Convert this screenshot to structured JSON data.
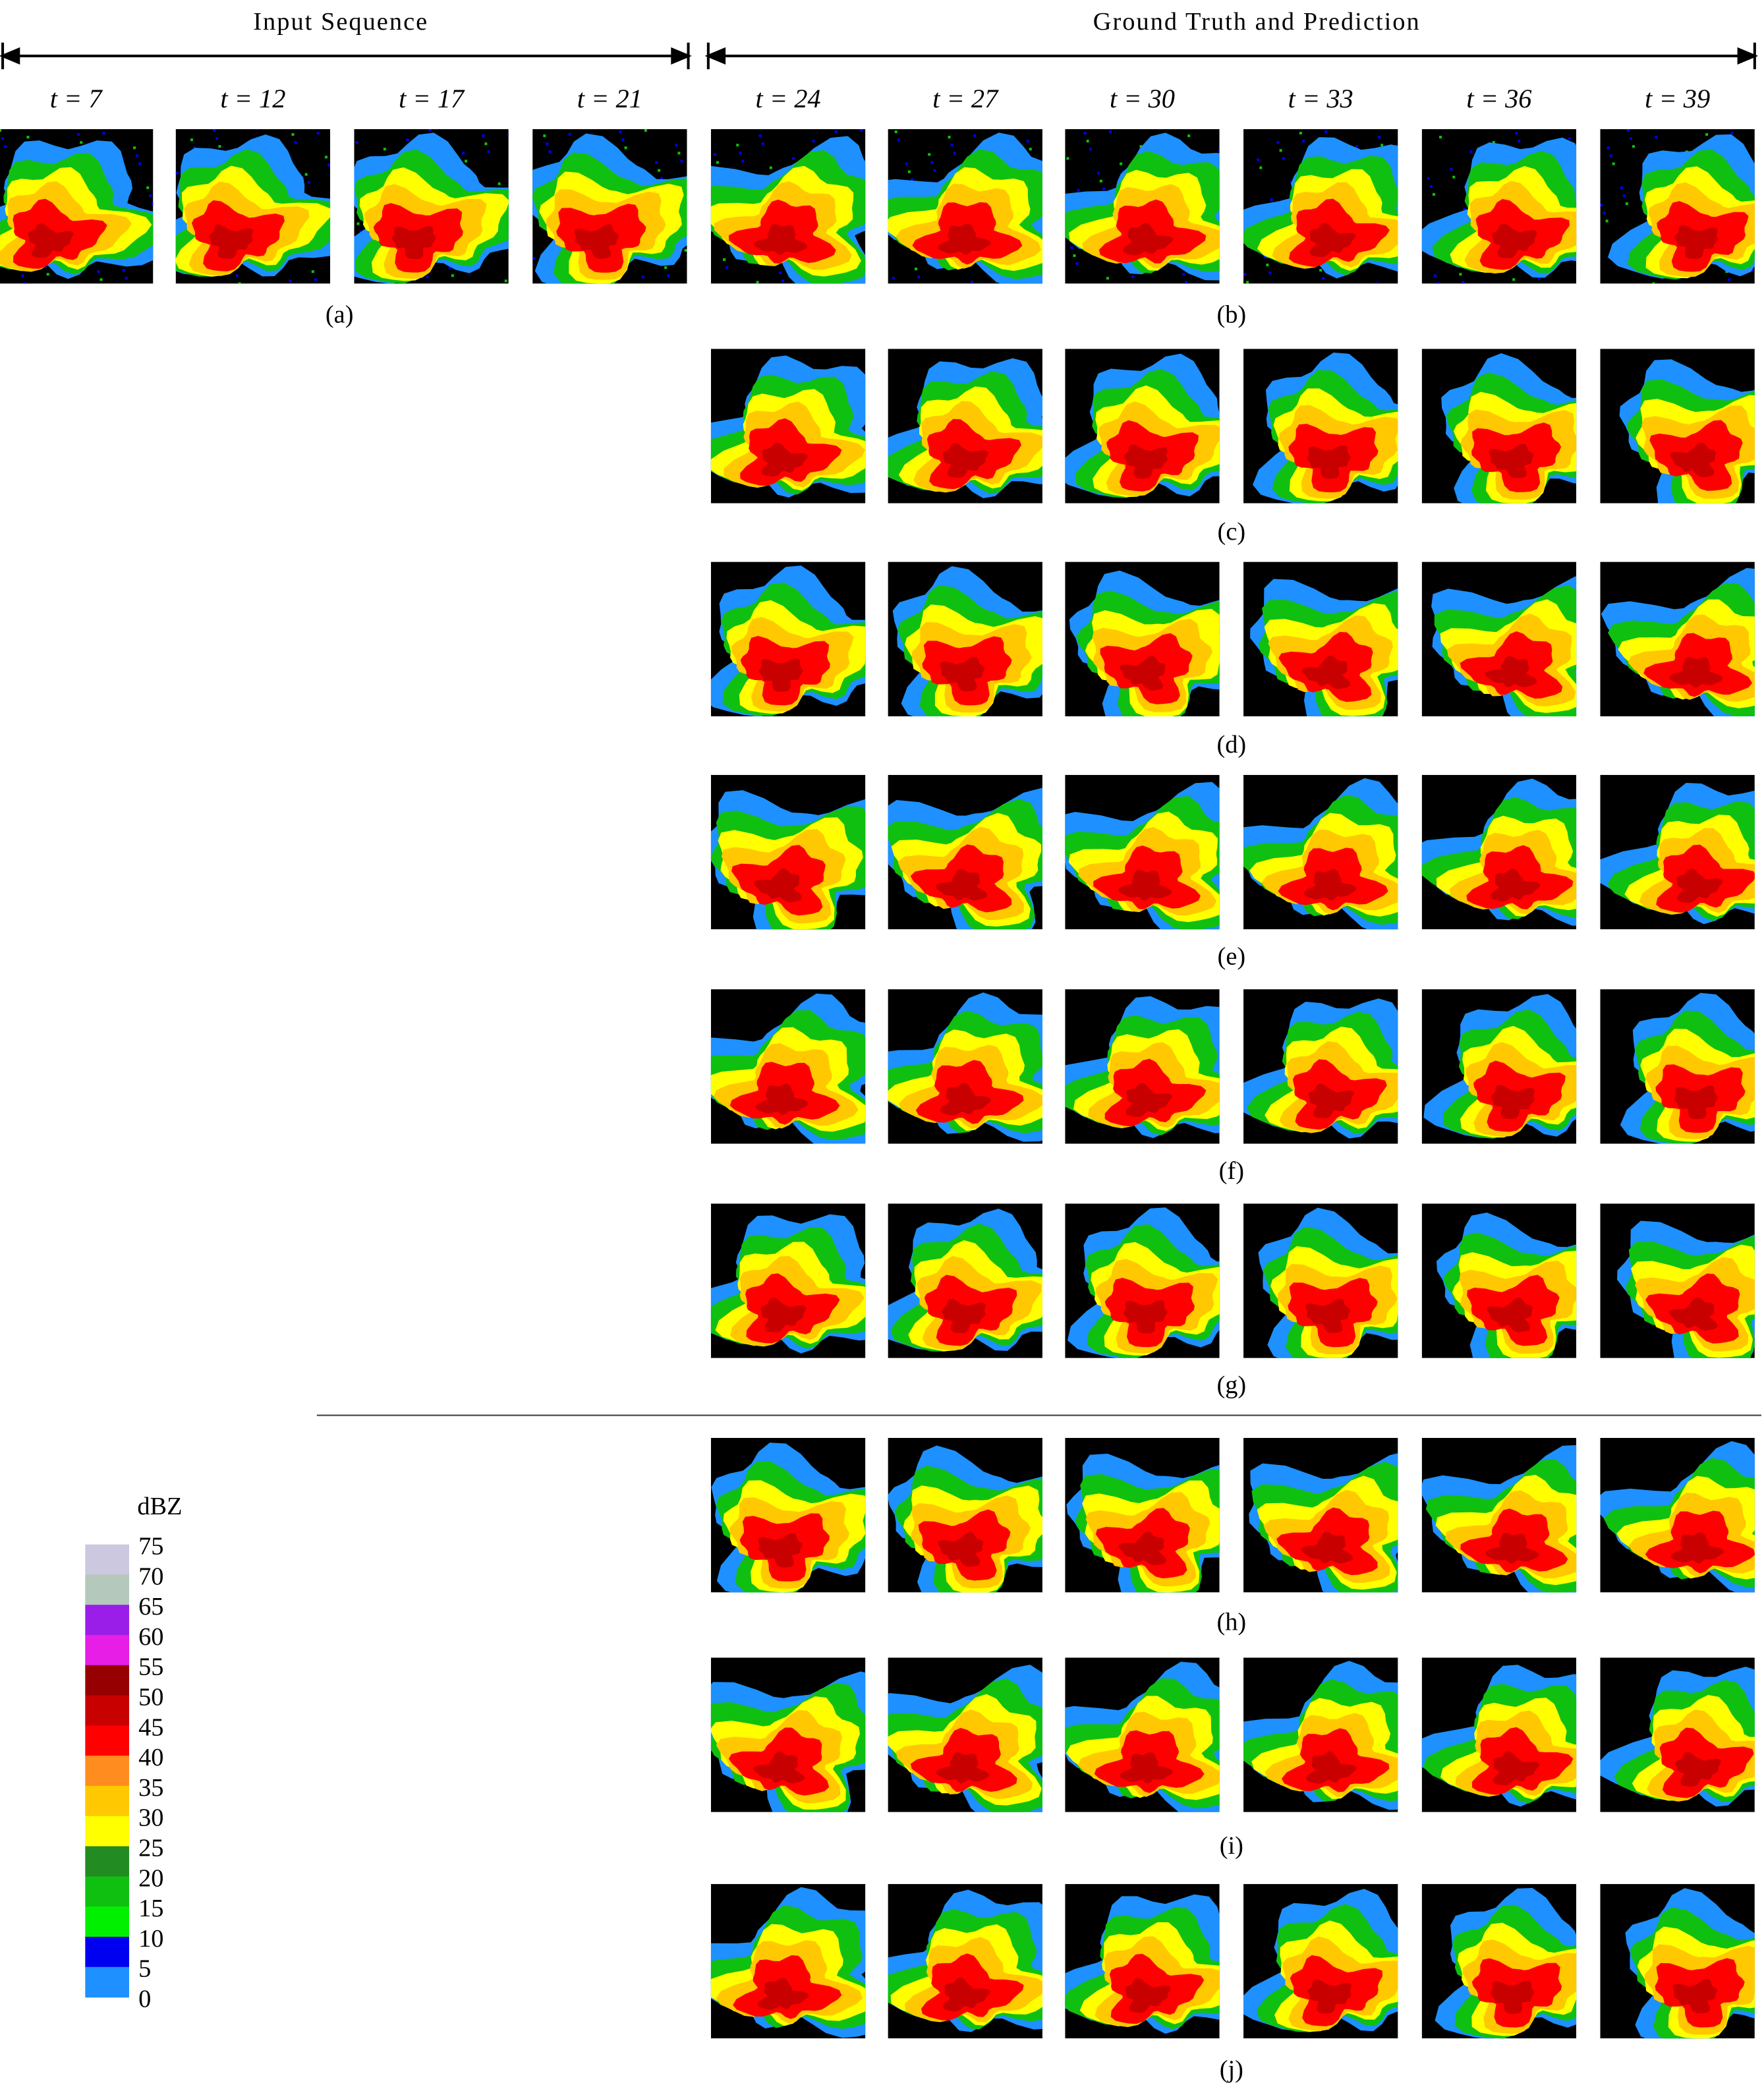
{
  "header": {
    "input_title": "Input Sequence",
    "output_title": "Ground Truth and Prediction"
  },
  "time_steps": [
    "t = 7",
    "t = 12",
    "t = 17",
    "t = 21",
    "t = 24",
    "t = 27",
    "t = 30",
    "t = 33",
    "t = 36",
    "t = 39"
  ],
  "panel_labels": [
    "(a)",
    "(b)",
    "(c)",
    "(d)",
    "(e)",
    "(f)",
    "(g)",
    "(h)",
    "(i)",
    "(j)"
  ],
  "colorbar": {
    "title": "dBZ",
    "ticks": [
      75,
      70,
      65,
      60,
      55,
      50,
      45,
      40,
      35,
      30,
      25,
      20,
      15,
      10,
      5,
      0
    ],
    "colors": [
      "#ccc8e0",
      "#b4c8bc",
      "#9a1ee8",
      "#e61ee6",
      "#960000",
      "#c80000",
      "#ff0000",
      "#ff8c1e",
      "#ffc800",
      "#ffff00",
      "#228b22",
      "#10c010",
      "#00f000",
      "#0000f0",
      "#1e90ff"
    ]
  }
}
